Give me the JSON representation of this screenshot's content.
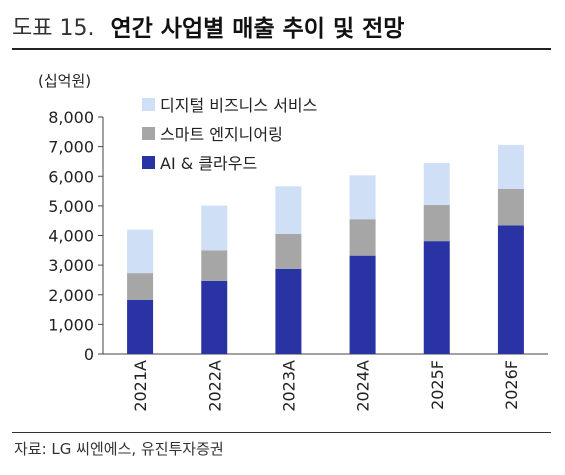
{
  "figure": {
    "number": "도표 15.",
    "title": "연간 사업별 매출 추이 및 전망",
    "source": "자료: LG 씨엔에스, 유진투자증권"
  },
  "chart_data": {
    "type": "bar",
    "stacked": true,
    "unit_label": "(십억원)",
    "categories": [
      "2021A",
      "2022A",
      "2023A",
      "2024A",
      "2025F",
      "2026F"
    ],
    "series": [
      {
        "name": "AI & 클라우드",
        "color": "#2a33a3",
        "values": [
          1830,
          2470,
          2870,
          3320,
          3810,
          4340
        ]
      },
      {
        "name": "스마트 엔지니어링",
        "color": "#a6a6a6",
        "values": [
          900,
          1030,
          1180,
          1230,
          1220,
          1230
        ]
      },
      {
        "name": "디지털 비즈니스 서비스",
        "color": "#cfe0f6",
        "values": [
          1470,
          1510,
          1610,
          1480,
          1420,
          1490
        ]
      }
    ],
    "legend_order": [
      "디지털 비즈니스 서비스",
      "스마트 엔지니어링",
      "AI & 클라우드"
    ],
    "legend_position": "top-left",
    "ylim": [
      0,
      8000
    ],
    "yticks": [
      0,
      1000,
      2000,
      3000,
      4000,
      5000,
      6000,
      7000,
      8000
    ],
    "ytick_labels": [
      "0",
      "1,000",
      "2,000",
      "3,000",
      "4,000",
      "5,000",
      "6,000",
      "7,000",
      "8,000"
    ],
    "grid": false,
    "x_label_rotation": "vertical"
  }
}
